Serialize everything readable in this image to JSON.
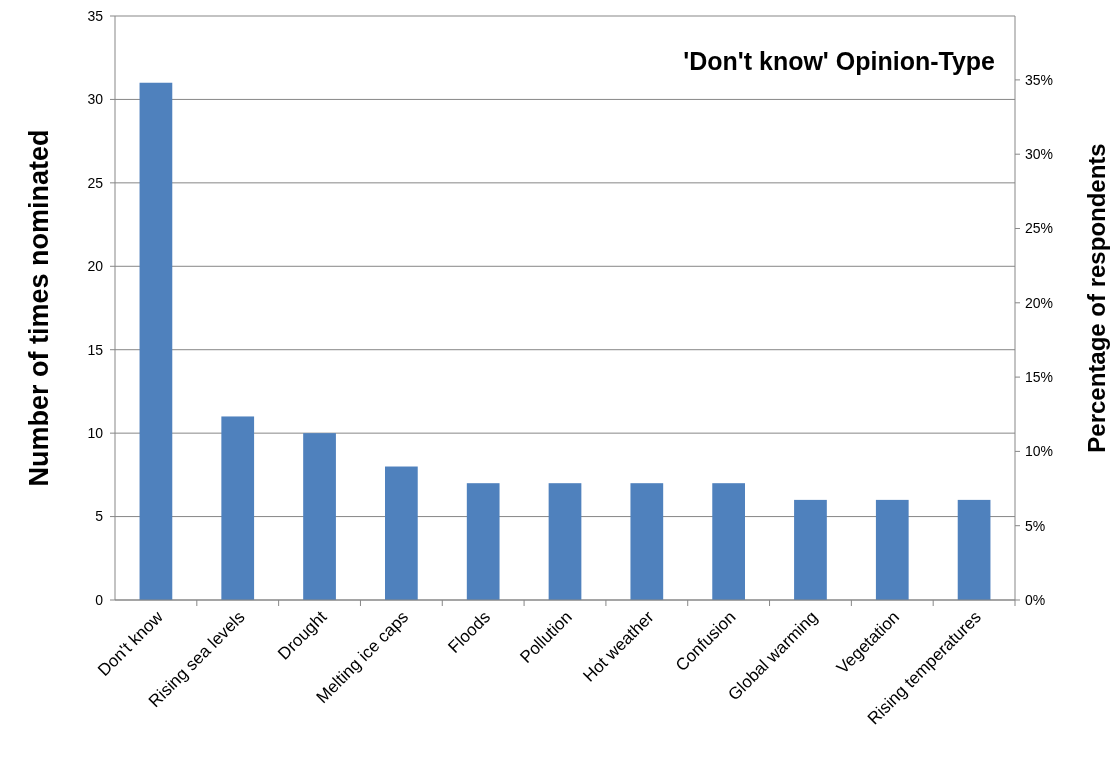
{
  "chart_data": {
    "type": "bar",
    "title": "'Don't know' Opinion-Type",
    "ylabel": "Number of times nominated",
    "y2label": "Percentage of respondents",
    "categories": [
      "Don't know",
      "Rising sea levels",
      "Drought",
      "Melting ice caps",
      "Floods",
      "Pollution",
      "Hot weather",
      "Confusion",
      "Global warming",
      "Vegetation",
      "Rising temperatures"
    ],
    "values": [
      31,
      11,
      10,
      8,
      7,
      7,
      7,
      7,
      6,
      6,
      6
    ],
    "color": "#4f81bd",
    "ylim": [
      0,
      35
    ],
    "yticks": [
      0,
      5,
      10,
      15,
      20,
      25,
      30,
      35
    ],
    "y2lim": [
      0,
      39.3
    ],
    "y2ticks": [
      {
        "value": 0,
        "label": "0%"
      },
      {
        "value": 5,
        "label": "5%"
      },
      {
        "value": 10,
        "label": "10%"
      },
      {
        "value": 15,
        "label": "15%"
      },
      {
        "value": 20,
        "label": "20%"
      },
      {
        "value": 25,
        "label": "25%"
      },
      {
        "value": 30,
        "label": "30%"
      },
      {
        "value": 35,
        "label": "35%"
      }
    ],
    "grid": "y"
  }
}
